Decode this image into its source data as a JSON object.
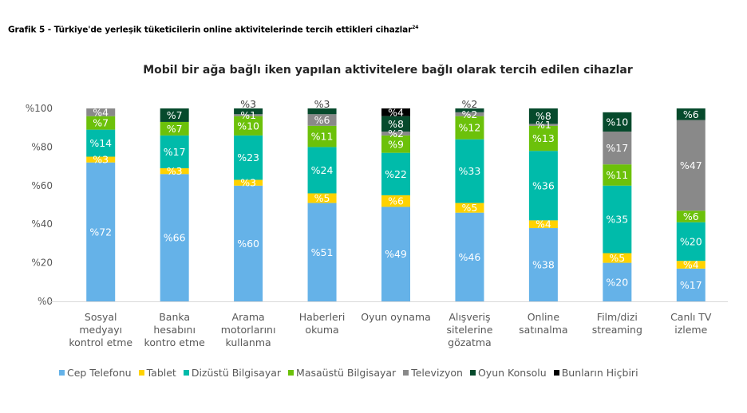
{
  "figure_title": "Grafik 5 - Türkiye'de yerleşik tüketicilerin online aktivitelerinde tercih ettikleri cihazlar",
  "figure_footnote": "24",
  "chart_data": {
    "type": "bar",
    "stacked": true,
    "title": "Mobil bir ağa bağlı iken yapılan aktivitelere bağlı olarak tercih edilen cihazlar",
    "xlabel": "",
    "ylabel": "",
    "ylim": [
      0,
      100
    ],
    "yticks": [
      "%0",
      "%20",
      "%40",
      "%60",
      "%80",
      "%100"
    ],
    "ytick_values": [
      0,
      20,
      40,
      60,
      80,
      100
    ],
    "grid": false,
    "legend_position": "bottom",
    "value_prefix": "%",
    "categories": [
      [
        "Sosyal",
        "medyayı",
        "kontrol etme"
      ],
      [
        "Banka",
        "hesabını",
        "kontro etme"
      ],
      [
        "Arama",
        "motorlarını",
        "kullanma"
      ],
      [
        "Haberleri",
        "okuma"
      ],
      [
        "Oyun oynama"
      ],
      [
        "Alışveriş",
        "sitelerine",
        "gözatma"
      ],
      [
        "Online",
        "satınalma"
      ],
      [
        "Film/dizi",
        "streaming"
      ],
      [
        "Canlı TV",
        "izleme"
      ]
    ],
    "series": [
      {
        "name": "Cep Telefonu",
        "color": "#65B2E8",
        "label_color": "#ffffff",
        "values": [
          72,
          66,
          60,
          51,
          49,
          46,
          38,
          20,
          17
        ]
      },
      {
        "name": "Tablet",
        "color": "#FFD200",
        "label_color": "#ffffff",
        "values": [
          3,
          3,
          3,
          5,
          6,
          5,
          4,
          5,
          4
        ]
      },
      {
        "name": "Dizüstü Bilgisayar",
        "color": "#00BBAA",
        "label_color": "#ffffff",
        "values": [
          14,
          17,
          23,
          24,
          22,
          33,
          36,
          35,
          20
        ]
      },
      {
        "name": "Masaüstü Bilgisayar",
        "color": "#6CC10A",
        "label_color": "#ffffff",
        "values": [
          7,
          7,
          10,
          11,
          9,
          12,
          13,
          11,
          6
        ]
      },
      {
        "name": "Televizyon",
        "color": "#898989",
        "label_color": "#ffffff",
        "values": [
          4,
          0,
          1,
          6,
          2,
          2,
          1,
          17,
          47
        ]
      },
      {
        "name": "Oyun Konsolu",
        "color": "#064A2C",
        "label_color": "#ffffff",
        "values": [
          0,
          7,
          3,
          3,
          8,
          2,
          8,
          10,
          6
        ]
      },
      {
        "name": "Bunların Hiçbiri",
        "color": "#000000",
        "label_color": "#ffffff",
        "values": [
          0,
          0,
          0,
          0,
          4,
          0,
          0,
          0,
          0
        ]
      }
    ]
  }
}
